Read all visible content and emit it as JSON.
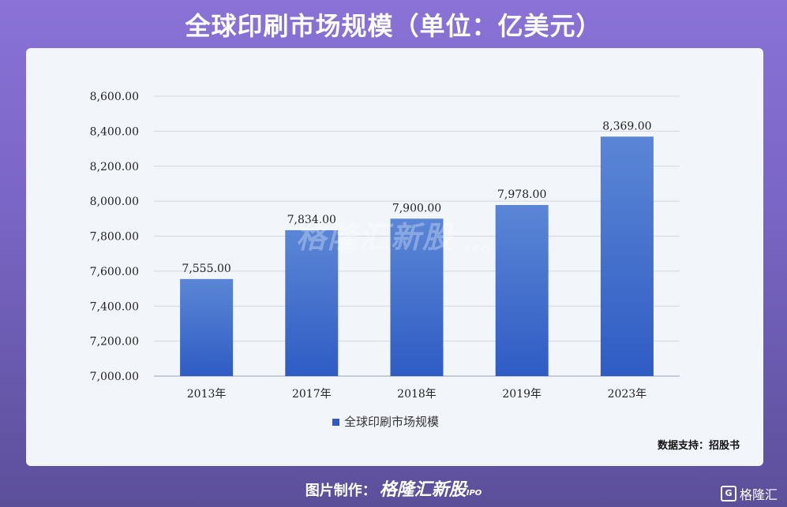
{
  "title": "全球印刷市场规模（单位：亿美元）",
  "source": "数据支持：招股书",
  "watermark": {
    "text": "格隆汇新股",
    "sub": "IPO"
  },
  "footer": {
    "prefix": "图片制作：",
    "brand": "格隆汇新股",
    "sub": "IPO"
  },
  "corner": {
    "icon": "G",
    "text": "格隆汇"
  },
  "colors": {
    "bar_top": "#5b86d6",
    "bar_bottom": "#2f5cc4",
    "grid": "#d3d8e0",
    "axis": "#9aa3b0"
  },
  "chart_data": {
    "type": "bar",
    "title": "全球印刷市场规模（单位：亿美元）",
    "categories": [
      "2013年",
      "2017年",
      "2018年",
      "2019年",
      "2023年"
    ],
    "series": [
      {
        "name": "全球印刷市场规模",
        "values": [
          7555.0,
          7834.0,
          7900.0,
          7978.0,
          8369.0
        ]
      }
    ],
    "data_labels": [
      "7,555.00",
      "7,834.00",
      "7,900.00",
      "7,978.00",
      "8,369.00"
    ],
    "yticks": [
      "7,000.00",
      "7,200.00",
      "7,400.00",
      "7,600.00",
      "7,800.00",
      "8,000.00",
      "8,200.00",
      "8,400.00",
      "8,600.00"
    ],
    "ylim": [
      7000,
      8600
    ],
    "grid": true,
    "legend": "bottom-center"
  }
}
